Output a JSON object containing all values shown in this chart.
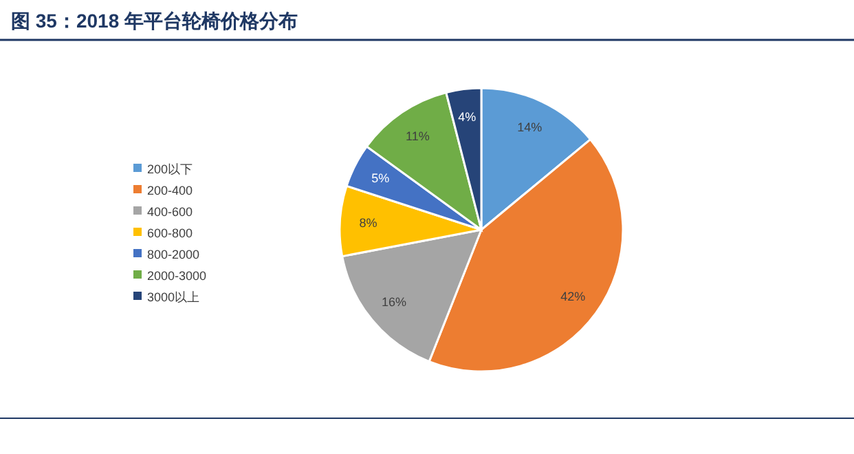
{
  "chart_data": {
    "type": "pie",
    "title": "图 35：2018 年平台轮椅价格分布",
    "categories": [
      "200以下",
      "200-400",
      "400-600",
      "600-800",
      "800-2000",
      "2000-3000",
      "3000以上"
    ],
    "values": [
      14,
      42,
      16,
      8,
      5,
      11,
      4
    ],
    "colors": [
      "#5b9bd5",
      "#ed7d31",
      "#a5a5a5",
      "#ffc000",
      "#4472c4",
      "#70ad47",
      "#264478"
    ],
    "value_labels": [
      "14%",
      "42%",
      "16%",
      "8%",
      "5%",
      "11%",
      "4%"
    ],
    "legend": "left"
  }
}
